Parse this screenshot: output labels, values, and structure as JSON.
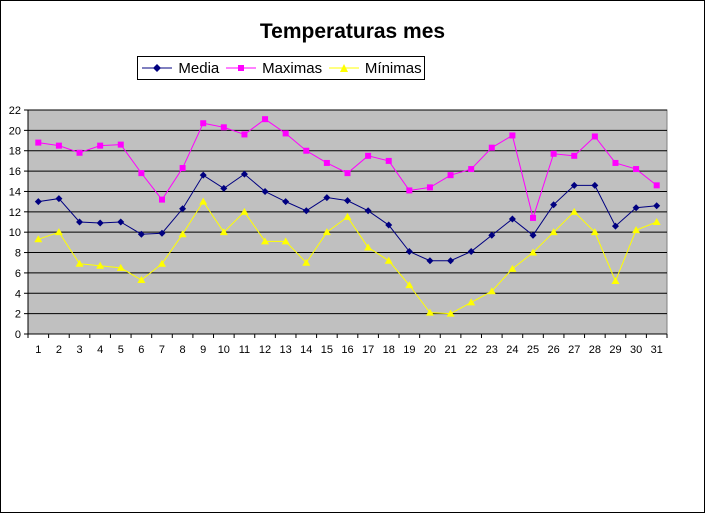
{
  "chart_data": {
    "type": "line",
    "title": "Temperaturas mes",
    "xlabel": "",
    "ylabel": "",
    "x": [
      1,
      2,
      3,
      4,
      5,
      6,
      7,
      8,
      9,
      10,
      11,
      12,
      13,
      14,
      15,
      16,
      17,
      18,
      19,
      20,
      21,
      22,
      23,
      24,
      25,
      26,
      27,
      28,
      29,
      30,
      31
    ],
    "ylim": [
      0,
      22
    ],
    "ytick_step": 2,
    "grid": true,
    "plot_background": "#c0c0c0",
    "legend_position": "top",
    "series": [
      {
        "name": "Media",
        "color": "#000080",
        "marker": "diamond",
        "values": [
          13.0,
          13.3,
          11.0,
          10.9,
          11.0,
          9.8,
          9.9,
          12.3,
          15.6,
          14.3,
          15.7,
          14.0,
          13.0,
          12.1,
          13.4,
          13.1,
          12.1,
          10.7,
          8.1,
          7.2,
          7.2,
          8.1,
          9.7,
          11.3,
          9.7,
          12.7,
          14.6,
          14.6,
          10.6,
          12.4,
          12.6
        ]
      },
      {
        "name": "Maximas",
        "color": "#ff00ff",
        "marker": "square",
        "values": [
          18.8,
          18.5,
          17.8,
          18.5,
          18.6,
          15.8,
          13.2,
          16.3,
          20.7,
          20.3,
          19.6,
          21.1,
          19.7,
          18.0,
          16.8,
          15.8,
          17.5,
          17.0,
          14.1,
          14.4,
          15.6,
          16.2,
          18.3,
          19.5,
          11.4,
          17.7,
          17.5,
          19.4,
          16.8,
          16.2,
          14.6
        ]
      },
      {
        "name": "Mínimas",
        "color": "#ffff00",
        "marker": "triangle",
        "values": [
          9.3,
          10.0,
          6.9,
          6.7,
          6.5,
          5.3,
          6.9,
          9.8,
          13.0,
          10.0,
          12.0,
          9.1,
          9.1,
          7.0,
          10.0,
          11.5,
          8.5,
          7.2,
          4.8,
          2.1,
          2.0,
          3.1,
          4.2,
          6.4,
          8.0,
          10.0,
          12.0,
          10.0,
          5.2,
          10.2,
          11.0
        ]
      }
    ]
  }
}
